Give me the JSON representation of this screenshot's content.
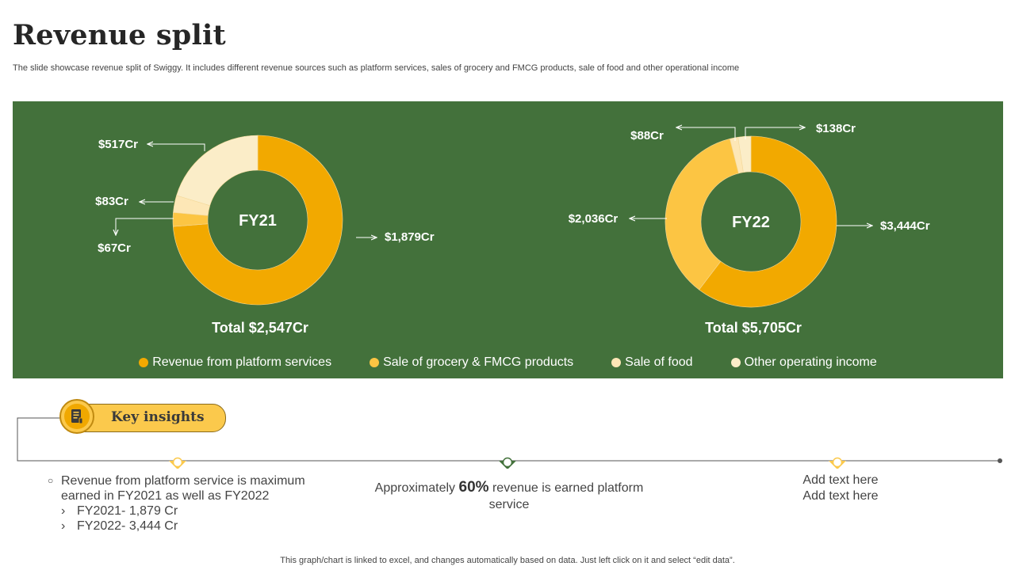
{
  "page": {
    "title": "Revenue split",
    "subtitle": "The slide showcase revenue split of Swiggy. It includes different revenue sources such as platform services, sales of grocery and FMCG  products, sale of food and other operational income",
    "footnote": "This graph/chart is linked to excel,  and changes automatically based on data. Just left click on it and select “edit data”."
  },
  "colors": {
    "panel": "#43713b",
    "platform": "#f2a900",
    "grocery": "#fcc543",
    "food": "#fde7b6",
    "other": "#fbedc8"
  },
  "chart_data": [
    {
      "type": "pie",
      "center_label": "FY21",
      "total_label": "Total $2,547Cr",
      "categories": [
        "Revenue from platform services",
        "Sale of grocery & FMCG products",
        "Sale of food",
        "Other operating income"
      ],
      "values": [
        1879,
        67,
        83,
        517
      ],
      "data_labels": [
        "$1,879Cr",
        "$67Cr",
        "$83Cr",
        "$517Cr"
      ],
      "legend": "bottom"
    },
    {
      "type": "pie",
      "center_label": "FY22",
      "total_label": "Total $5,705Cr",
      "categories": [
        "Revenue from platform services",
        "Sale of grocery & FMCG products",
        "Sale of food",
        "Other operating income"
      ],
      "values": [
        3444,
        2036,
        88,
        138
      ],
      "data_labels": [
        "$3,444Cr",
        "$2,036Cr",
        "$88Cr",
        "$138Cr"
      ],
      "legend": "bottom"
    }
  ],
  "legend": [
    {
      "label": "Revenue from platform services",
      "color": "#f2a900"
    },
    {
      "label": "Sale of grocery & FMCG products",
      "color": "#fcc543"
    },
    {
      "label": "Sale of food",
      "color": "#fde7b6"
    },
    {
      "label": "Other operating income",
      "color": "#fbedc8"
    }
  ],
  "insights": {
    "heading": "Key insights",
    "icon": "document-icon",
    "left": {
      "main": "Revenue from platform service is maximum earned in FY2021 as well as FY2022",
      "sub": [
        "FY2021- 1,879 Cr",
        "FY2022- 3,444 Cr"
      ]
    },
    "middle": {
      "prefix": "Approximately ",
      "percent": "60%",
      "suffix": " revenue  is earned platform service"
    },
    "right": [
      "Add text here",
      "Add text here"
    ]
  }
}
